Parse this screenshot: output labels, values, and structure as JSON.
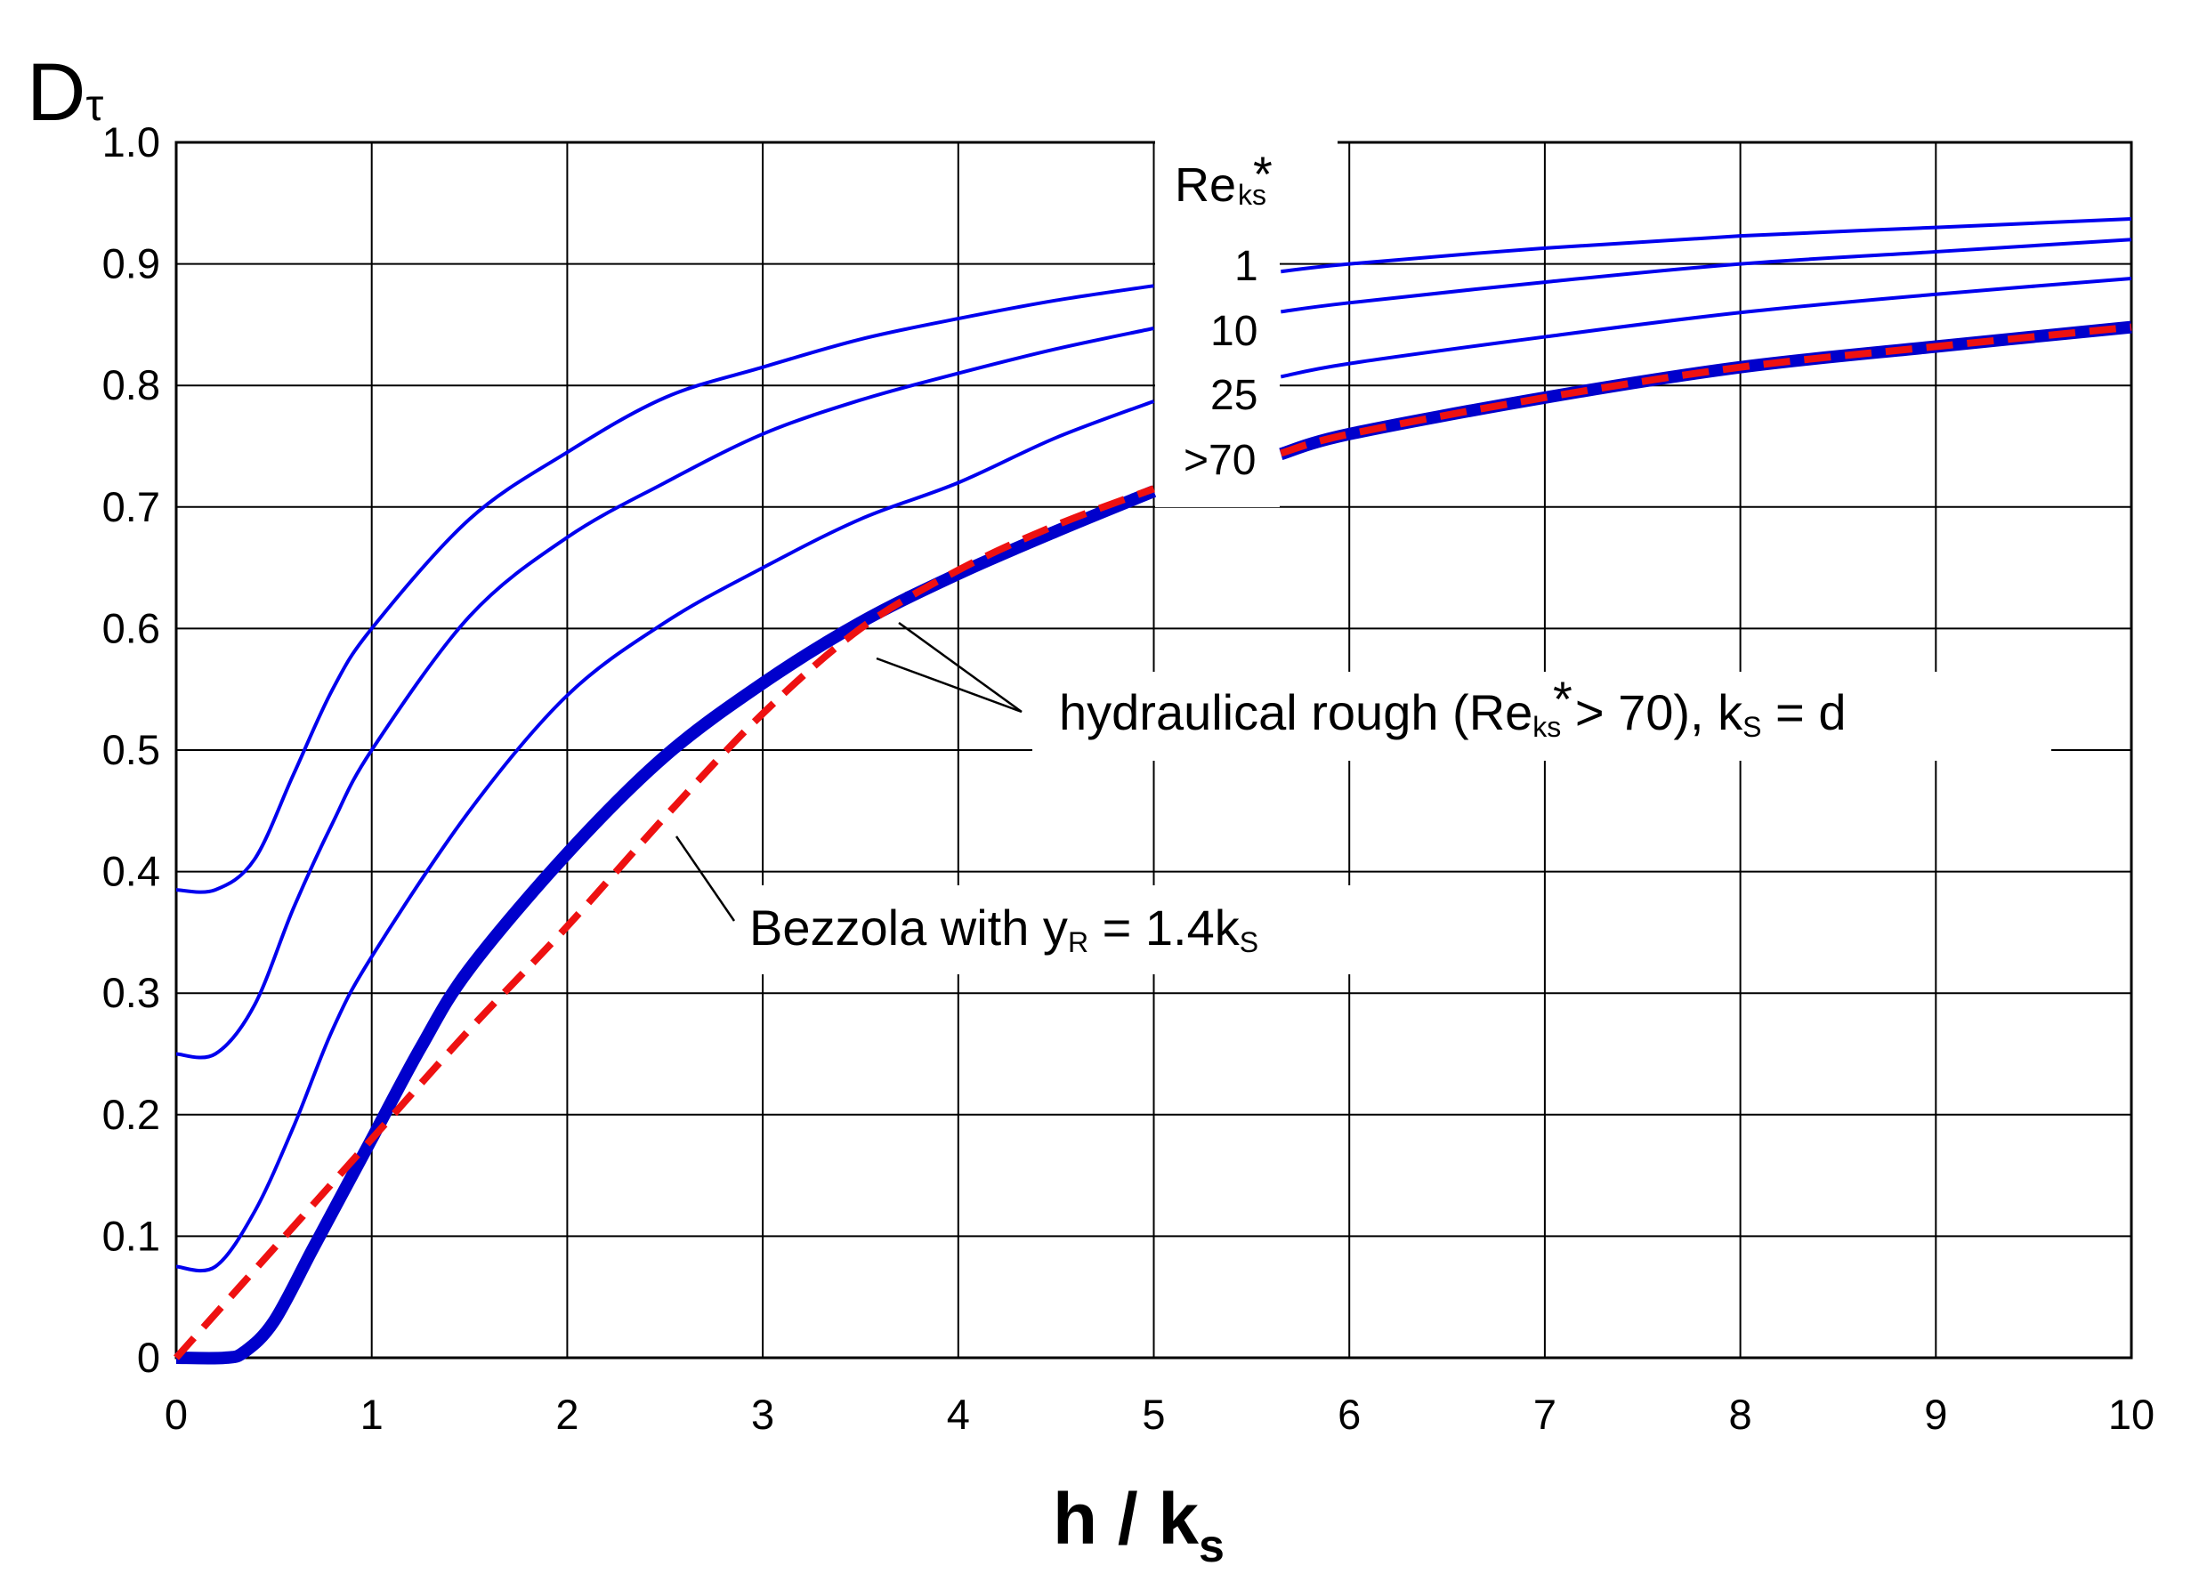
{
  "chart_data": {
    "type": "line",
    "title": "",
    "ylabel": "D",
    "ylabel_sub": "τ",
    "xlabel": "h / k",
    "xlabel_sub": "s",
    "xlim": [
      0,
      10
    ],
    "ylim": [
      0,
      1.0
    ],
    "x_ticks": [
      0,
      1,
      2,
      3,
      4,
      5,
      6,
      7,
      8,
      9,
      10
    ],
    "y_ticks": [
      0,
      0.1,
      0.2,
      0.3,
      0.4,
      0.5,
      0.6,
      0.7,
      0.8,
      0.9,
      1.0
    ],
    "x_tick_labels": [
      "0",
      "1",
      "2",
      "3",
      "4",
      "5",
      "6",
      "7",
      "8",
      "9",
      "10"
    ],
    "y_tick_labels": [
      "0",
      "0.1",
      "0.2",
      "0.3",
      "0.4",
      "0.5",
      "0.6",
      "0.7",
      "0.8",
      "0.9",
      "1.0"
    ],
    "grid": true,
    "legend": {
      "title": "Re",
      "title_sup": "*",
      "title_sub": "ks"
    },
    "series": [
      {
        "name": "1",
        "color": "#0000ee",
        "style": "solid",
        "x": [
          0,
          0.2,
          0.4,
          0.6,
          0.8,
          1,
          1.5,
          2,
          2.5,
          3,
          3.5,
          4,
          4.5,
          5,
          6,
          7,
          8,
          9,
          10
        ],
        "y": [
          0.385,
          0.385,
          0.41,
          0.48,
          0.55,
          0.6,
          0.69,
          0.745,
          0.79,
          0.815,
          0.838,
          0.855,
          0.87,
          0.882,
          0.9,
          0.913,
          0.923,
          0.93,
          0.937
        ]
      },
      {
        "name": "10",
        "color": "#0000ee",
        "style": "solid",
        "x": [
          0,
          0.2,
          0.4,
          0.6,
          0.8,
          1,
          1.5,
          2,
          2.5,
          3,
          3.5,
          4,
          4.5,
          5,
          6,
          7,
          8,
          9,
          10
        ],
        "y": [
          0.25,
          0.25,
          0.29,
          0.37,
          0.44,
          0.5,
          0.61,
          0.675,
          0.72,
          0.76,
          0.788,
          0.81,
          0.83,
          0.847,
          0.868,
          0.885,
          0.9,
          0.91,
          0.92
        ]
      },
      {
        "name": "25",
        "color": "#0000ee",
        "style": "solid",
        "x": [
          0,
          0.2,
          0.4,
          0.6,
          0.8,
          1,
          1.5,
          2,
          2.5,
          3,
          3.5,
          4,
          4.5,
          5,
          6,
          7,
          8,
          9,
          10
        ],
        "y": [
          0.075,
          0.075,
          0.12,
          0.19,
          0.27,
          0.33,
          0.45,
          0.545,
          0.605,
          0.65,
          0.69,
          0.72,
          0.757,
          0.787,
          0.818,
          0.84,
          0.86,
          0.875,
          0.888
        ]
      },
      {
        "name": ">70",
        "color": "#0000cc",
        "style": "thick",
        "x": [
          0,
          0.25,
          0.35,
          0.5,
          0.7,
          0.9,
          1,
          1.25,
          1.5,
          2,
          2.5,
          3,
          3.5,
          4,
          4.5,
          5,
          6,
          7,
          8,
          9,
          10
        ],
        "y": [
          0,
          0,
          0.005,
          0.03,
          0.09,
          0.15,
          0.18,
          0.255,
          0.32,
          0.415,
          0.495,
          0.555,
          0.605,
          0.645,
          0.68,
          0.713,
          0.76,
          0.79,
          0.815,
          0.832,
          0.848
        ]
      },
      {
        "name": "Bezzola with yR = 1.4kS",
        "color": "#ee1111",
        "style": "dashed",
        "x": [
          0,
          0.5,
          1,
          1.5,
          2,
          2.5,
          3,
          3.5,
          4,
          4.5,
          5,
          6,
          7,
          8,
          9,
          10
        ],
        "y": [
          0,
          0.09,
          0.18,
          0.27,
          0.355,
          0.445,
          0.53,
          0.6,
          0.648,
          0.685,
          0.715,
          0.76,
          0.79,
          0.815,
          0.832,
          0.848
        ]
      }
    ],
    "series_labels": {
      "re1": "1",
      "re10": "10",
      "re25": "25",
      "re70": ">70"
    },
    "annotations": {
      "hydraulic": {
        "part1": "hydraulical rough (Re",
        "sup": "*",
        "sub": "ks",
        "part2": " > 70), k",
        "sub2": "S",
        "part3": " = d"
      },
      "bezzola": {
        "part1": "Bezzola with y",
        "sub1": "R",
        "part2": " = 1.4k",
        "sub2": "S"
      }
    }
  }
}
